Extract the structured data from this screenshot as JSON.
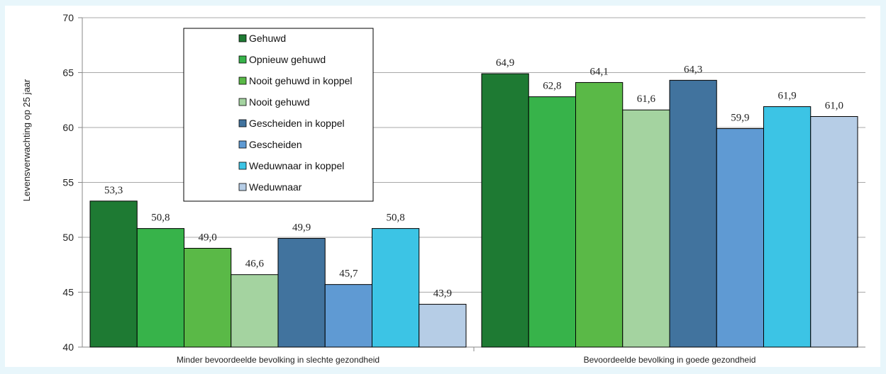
{
  "chart_data": {
    "type": "bar",
    "ylabel": "Levensverwachting op 25 jaar",
    "ylim": [
      40,
      70
    ],
    "yticks": [
      40,
      45,
      50,
      55,
      60,
      65,
      70
    ],
    "grid": true,
    "legend_position": "top-left",
    "categories": [
      "Minder bevoordeelde bevolking in slechte gezondheid",
      "Bevoordeelde bevolking in goede gezondheid"
    ],
    "series": [
      {
        "name": "Gehuwd",
        "color": "#1e7a33",
        "values": [
          53.3,
          64.9
        ],
        "labels": [
          "53,3",
          "64,9"
        ]
      },
      {
        "name": "Opnieuw gehuwd",
        "color": "#37b34a",
        "values": [
          50.8,
          62.8
        ],
        "labels": [
          "50,8",
          "62,8"
        ]
      },
      {
        "name": "Nooit gehuwd in koppel",
        "color": "#5ab947",
        "values": [
          49.0,
          64.1
        ],
        "labels": [
          "49,0",
          "64,1"
        ]
      },
      {
        "name": "Nooit gehuwd",
        "color": "#a4d3a0",
        "values": [
          46.6,
          61.6
        ],
        "labels": [
          "46,6",
          "61,6"
        ]
      },
      {
        "name": "Gescheiden in koppel",
        "color": "#41739e",
        "values": [
          49.9,
          64.3
        ],
        "labels": [
          "49,9",
          "64,3"
        ]
      },
      {
        "name": "Gescheiden",
        "color": "#5f9ad3",
        "values": [
          45.7,
          59.9
        ],
        "labels": [
          "45,7",
          "59,9"
        ]
      },
      {
        "name": "Weduwnaar in koppel",
        "color": "#3cc4e5",
        "values": [
          50.8,
          61.9
        ],
        "labels": [
          "50,8",
          "61,9"
        ]
      },
      {
        "name": "Weduwnaar",
        "color": "#b6cde6",
        "values": [
          43.9,
          61.0
        ],
        "labels": [
          "43,9",
          "61,0"
        ]
      }
    ]
  }
}
